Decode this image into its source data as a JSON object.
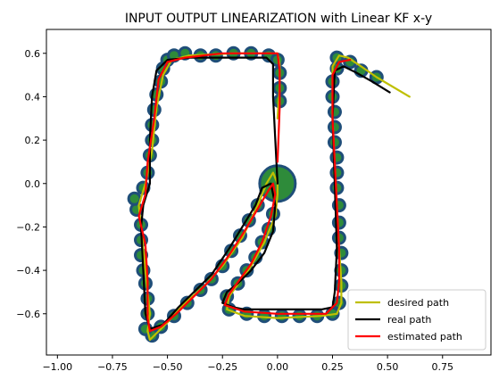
{
  "chart_data": {
    "type": "line",
    "title": "INPUT OUTPUT LINEARIZATION with Linear KF x-y",
    "xlabel": "",
    "ylabel": "",
    "xlim": [
      -1.05,
      0.97
    ],
    "ylim": [
      -0.79,
      0.71
    ],
    "xticks": [
      -1.0,
      -0.75,
      -0.5,
      -0.25,
      0.0,
      0.25,
      0.5,
      0.75
    ],
    "xtick_labels": [
      "−1.00",
      "−0.75",
      "−0.50",
      "−0.25",
      "0.00",
      "0.25",
      "0.50",
      "0.75"
    ],
    "yticks": [
      -0.6,
      -0.4,
      -0.2,
      0.0,
      0.2,
      0.4,
      0.6
    ],
    "ytick_labels": [
      "−0.6",
      "−0.4",
      "−0.2",
      "0.0",
      "0.2",
      "0.4",
      "0.6"
    ],
    "grid": false,
    "legend_position": "lower-right",
    "colors": {
      "desired": "#bfbf00",
      "real": "#000000",
      "estimated": "#ff0000",
      "marker_edge": "#1f4e79",
      "marker_fill": "#2e8b3a"
    },
    "series": [
      {
        "name": "desired path",
        "color": "#bfbf00",
        "points": [
          [
            0.6,
            0.4
          ],
          [
            0.45,
            0.49
          ],
          [
            0.38,
            0.54
          ],
          [
            0.32,
            0.58
          ],
          [
            0.28,
            0.59
          ],
          [
            0.25,
            0.54
          ],
          [
            0.25,
            0.3
          ],
          [
            0.26,
            0.1
          ],
          [
            0.27,
            -0.1
          ],
          [
            0.28,
            -0.3
          ],
          [
            0.29,
            -0.45
          ],
          [
            0.29,
            -0.55
          ],
          [
            0.27,
            -0.6
          ],
          [
            0.2,
            -0.61
          ],
          [
            0.0,
            -0.62
          ],
          [
            -0.15,
            -0.61
          ],
          [
            -0.23,
            -0.58
          ],
          [
            -0.22,
            -0.52
          ],
          [
            -0.17,
            -0.45
          ],
          [
            -0.12,
            -0.38
          ],
          [
            -0.06,
            -0.27
          ],
          [
            -0.01,
            -0.15
          ],
          [
            0.0,
            -0.05
          ],
          [
            0.0,
            0.0
          ],
          [
            -0.02,
            0.05
          ],
          [
            -0.05,
            0.0
          ],
          [
            -0.09,
            -0.1
          ],
          [
            -0.16,
            -0.25
          ],
          [
            -0.25,
            -0.38
          ],
          [
            -0.33,
            -0.47
          ],
          [
            -0.42,
            -0.55
          ],
          [
            -0.5,
            -0.64
          ],
          [
            -0.58,
            -0.72
          ],
          [
            -0.59,
            -0.68
          ],
          [
            -0.58,
            -0.6
          ],
          [
            -0.6,
            -0.4
          ],
          [
            -0.62,
            -0.2
          ],
          [
            -0.63,
            -0.1
          ],
          [
            -0.6,
            0.0
          ],
          [
            -0.57,
            0.15
          ],
          [
            -0.55,
            0.35
          ],
          [
            -0.52,
            0.5
          ],
          [
            -0.48,
            0.57
          ],
          [
            -0.4,
            0.59
          ],
          [
            -0.2,
            0.6
          ],
          [
            -0.05,
            0.6
          ],
          [
            0.0,
            0.6
          ],
          [
            0.01,
            0.55
          ],
          [
            0.01,
            0.45
          ],
          [
            0.0,
            0.3
          ]
        ]
      },
      {
        "name": "real path",
        "color": "#000000",
        "points": [
          [
            0.51,
            0.42
          ],
          [
            0.43,
            0.47
          ],
          [
            0.36,
            0.51
          ],
          [
            0.3,
            0.54
          ],
          [
            0.26,
            0.52
          ],
          [
            0.25,
            0.3
          ],
          [
            0.26,
            0.0
          ],
          [
            0.27,
            -0.3
          ],
          [
            0.26,
            -0.5
          ],
          [
            0.25,
            -0.57
          ],
          [
            0.2,
            -0.58
          ],
          [
            0.0,
            -0.58
          ],
          [
            -0.15,
            -0.58
          ],
          [
            -0.2,
            -0.57
          ],
          [
            -0.25,
            -0.55
          ],
          [
            -0.23,
            -0.5
          ],
          [
            -0.18,
            -0.46
          ],
          [
            -0.12,
            -0.4
          ],
          [
            -0.06,
            -0.32
          ],
          [
            -0.02,
            -0.22
          ],
          [
            -0.01,
            -0.1
          ],
          [
            -0.03,
            0.0
          ],
          [
            -0.07,
            -0.02
          ],
          [
            -0.1,
            -0.1
          ],
          [
            -0.16,
            -0.2
          ],
          [
            -0.22,
            -0.3
          ],
          [
            -0.3,
            -0.42
          ],
          [
            -0.38,
            -0.5
          ],
          [
            -0.45,
            -0.57
          ],
          [
            -0.52,
            -0.65
          ],
          [
            -0.58,
            -0.67
          ],
          [
            -0.6,
            -0.6
          ],
          [
            -0.61,
            -0.4
          ],
          [
            -0.62,
            -0.2
          ],
          [
            -0.61,
            -0.1
          ],
          [
            -0.58,
            0.0
          ],
          [
            -0.58,
            0.2
          ],
          [
            -0.57,
            0.4
          ],
          [
            -0.55,
            0.52
          ],
          [
            -0.5,
            0.57
          ],
          [
            -0.4,
            0.58
          ],
          [
            -0.2,
            0.58
          ],
          [
            -0.05,
            0.58
          ],
          [
            -0.02,
            0.55
          ],
          [
            -0.02,
            0.4
          ],
          [
            -0.01,
            0.2
          ],
          [
            0.0,
            0.0
          ]
        ]
      },
      {
        "name": "estimated path",
        "color": "#ff0000",
        "points": [
          [
            0.33,
            0.57
          ],
          [
            0.28,
            0.56
          ],
          [
            0.25,
            0.5
          ],
          [
            0.25,
            0.3
          ],
          [
            0.26,
            0.1
          ],
          [
            0.27,
            -0.1
          ],
          [
            0.28,
            -0.3
          ],
          [
            0.28,
            -0.45
          ],
          [
            0.27,
            -0.55
          ],
          [
            0.22,
            -0.6
          ],
          [
            0.0,
            -0.6
          ],
          [
            -0.15,
            -0.59
          ],
          [
            -0.24,
            -0.56
          ],
          [
            -0.22,
            -0.51
          ],
          [
            -0.17,
            -0.44
          ],
          [
            -0.12,
            -0.37
          ],
          [
            -0.07,
            -0.27
          ],
          [
            -0.03,
            -0.15
          ],
          [
            -0.01,
            -0.05
          ],
          [
            -0.02,
            0.0
          ],
          [
            -0.04,
            -0.03
          ],
          [
            -0.08,
            -0.1
          ],
          [
            -0.15,
            -0.22
          ],
          [
            -0.22,
            -0.33
          ],
          [
            -0.3,
            -0.44
          ],
          [
            -0.38,
            -0.52
          ],
          [
            -0.46,
            -0.6
          ],
          [
            -0.53,
            -0.66
          ],
          [
            -0.58,
            -0.68
          ],
          [
            -0.59,
            -0.62
          ],
          [
            -0.59,
            -0.45
          ],
          [
            -0.6,
            -0.28
          ],
          [
            -0.63,
            -0.15
          ],
          [
            -0.6,
            -0.05
          ],
          [
            -0.59,
            0.1
          ],
          [
            -0.56,
            0.3
          ],
          [
            -0.54,
            0.48
          ],
          [
            -0.5,
            0.56
          ],
          [
            -0.42,
            0.58
          ],
          [
            -0.25,
            0.6
          ],
          [
            -0.05,
            0.6
          ],
          [
            0.0,
            0.6
          ],
          [
            0.01,
            0.52
          ],
          [
            0.01,
            0.35
          ],
          [
            0.0,
            0.1
          ]
        ]
      }
    ],
    "markers": {
      "points": [
        [
          0.45,
          0.49
        ],
        [
          0.38,
          0.52
        ],
        [
          0.33,
          0.56
        ],
        [
          0.27,
          0.58
        ],
        [
          0.27,
          0.53
        ],
        [
          0.25,
          0.47
        ],
        [
          0.25,
          0.4
        ],
        [
          0.26,
          0.33
        ],
        [
          0.26,
          0.26
        ],
        [
          0.26,
          0.19
        ],
        [
          0.27,
          0.12
        ],
        [
          0.27,
          0.05
        ],
        [
          0.27,
          -0.02
        ],
        [
          0.28,
          -0.1
        ],
        [
          0.28,
          -0.18
        ],
        [
          0.28,
          -0.25
        ],
        [
          0.29,
          -0.32
        ],
        [
          0.29,
          -0.4
        ],
        [
          0.29,
          -0.47
        ],
        [
          0.28,
          -0.55
        ],
        [
          0.25,
          -0.6
        ],
        [
          0.18,
          -0.61
        ],
        [
          0.1,
          -0.61
        ],
        [
          0.02,
          -0.61
        ],
        [
          -0.06,
          -0.61
        ],
        [
          -0.14,
          -0.6
        ],
        [
          -0.22,
          -0.58
        ],
        [
          -0.23,
          -0.52
        ],
        [
          -0.18,
          -0.46
        ],
        [
          -0.14,
          -0.4
        ],
        [
          -0.1,
          -0.34
        ],
        [
          -0.07,
          -0.27
        ],
        [
          -0.04,
          -0.21
        ],
        [
          -0.02,
          -0.14
        ],
        [
          -0.05,
          -0.03
        ],
        [
          -0.09,
          -0.1
        ],
        [
          -0.13,
          -0.17
        ],
        [
          -0.17,
          -0.24
        ],
        [
          -0.21,
          -0.31
        ],
        [
          -0.25,
          -0.38
        ],
        [
          -0.3,
          -0.44
        ],
        [
          -0.35,
          -0.49
        ],
        [
          -0.41,
          -0.55
        ],
        [
          -0.47,
          -0.61
        ],
        [
          -0.53,
          -0.66
        ],
        [
          -0.57,
          -0.7
        ],
        [
          -0.6,
          -0.67
        ],
        [
          -0.59,
          -0.6
        ],
        [
          -0.59,
          -0.53
        ],
        [
          -0.6,
          -0.46
        ],
        [
          -0.61,
          -0.4
        ],
        [
          -0.62,
          -0.33
        ],
        [
          -0.62,
          -0.26
        ],
        [
          -0.62,
          -0.19
        ],
        [
          -0.64,
          -0.12
        ],
        [
          -0.65,
          -0.07
        ],
        [
          -0.61,
          -0.02
        ],
        [
          -0.59,
          0.05
        ],
        [
          -0.58,
          0.13
        ],
        [
          -0.57,
          0.2
        ],
        [
          -0.57,
          0.27
        ],
        [
          -0.56,
          0.34
        ],
        [
          -0.55,
          0.41
        ],
        [
          -0.53,
          0.47
        ],
        [
          -0.52,
          0.53
        ],
        [
          -0.5,
          0.57
        ],
        [
          -0.47,
          0.59
        ],
        [
          -0.42,
          0.6
        ],
        [
          -0.35,
          0.59
        ],
        [
          -0.28,
          0.59
        ],
        [
          -0.2,
          0.6
        ],
        [
          -0.12,
          0.6
        ],
        [
          -0.04,
          0.59
        ],
        [
          0.0,
          0.57
        ],
        [
          0.01,
          0.51
        ],
        [
          0.01,
          0.44
        ],
        [
          0.01,
          0.38
        ]
      ],
      "big_marker": [
        0.0,
        0.0
      ]
    }
  }
}
